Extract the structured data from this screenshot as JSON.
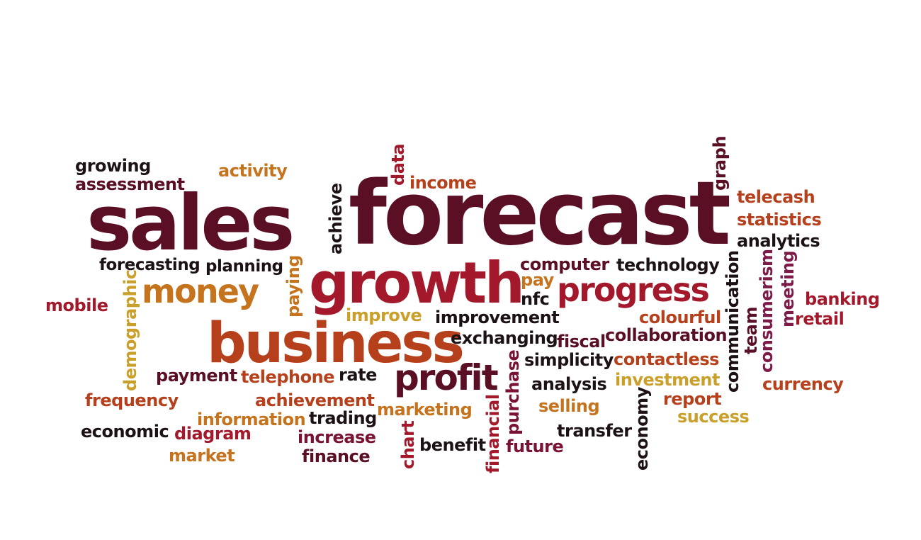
{
  "colors": {
    "dark": "#5a0f24",
    "black": "#1c1216",
    "red": "#a3182a",
    "rust": "#b6401c",
    "orange": "#c6731e",
    "gold": "#caa02a",
    "maroon": "#7a1233",
    "plum": "#7d1a48",
    "background": "#ffffff"
  },
  "words": {
    "sales": "sales",
    "forecast": "forecast",
    "growth": "growth",
    "business": "business",
    "progress": "progress",
    "money": "money",
    "profit": "profit",
    "growing": "growing",
    "assessment": "assessment",
    "activity": "activity",
    "data": "data",
    "income": "income",
    "achieve": "achieve",
    "graph": "graph",
    "telecash": "telecash",
    "statistics": "statistics",
    "analytics": "analytics",
    "forecasting": "forecasting",
    "planning": "planning",
    "computer": "computer",
    "technology": "technology",
    "pay": "pay",
    "nfc": "nfc",
    "paying": "paying",
    "demographic": "demographic",
    "mobile": "mobile",
    "improve": "improve",
    "improvement": "improvement",
    "colourful": "colourful",
    "communication": "communication",
    "team": "team",
    "consumerism": "consumerism",
    "meeting": "meeting",
    "banking": "banking",
    "retail": "retail",
    "exchanging": "exchanging",
    "fiscal": "fiscal",
    "collaboration": "collaboration",
    "simplicity": "simplicity",
    "contactless": "contactless",
    "payment": "payment",
    "telephone": "telephone",
    "rate": "rate",
    "purchase": "purchase",
    "analysis": "analysis",
    "investment": "investment",
    "currency": "currency",
    "frequency": "frequency",
    "achievement": "achievement",
    "report": "report",
    "information": "information",
    "trading": "trading",
    "marketing": "marketing",
    "selling": "selling",
    "success": "success",
    "economic": "economic",
    "diagram": "diagram",
    "increase": "increase",
    "chart": "chart",
    "financial": "financial",
    "transfer": "transfer",
    "economy": "economy",
    "market": "market",
    "finance": "finance",
    "benefit": "benefit",
    "future": "future"
  }
}
